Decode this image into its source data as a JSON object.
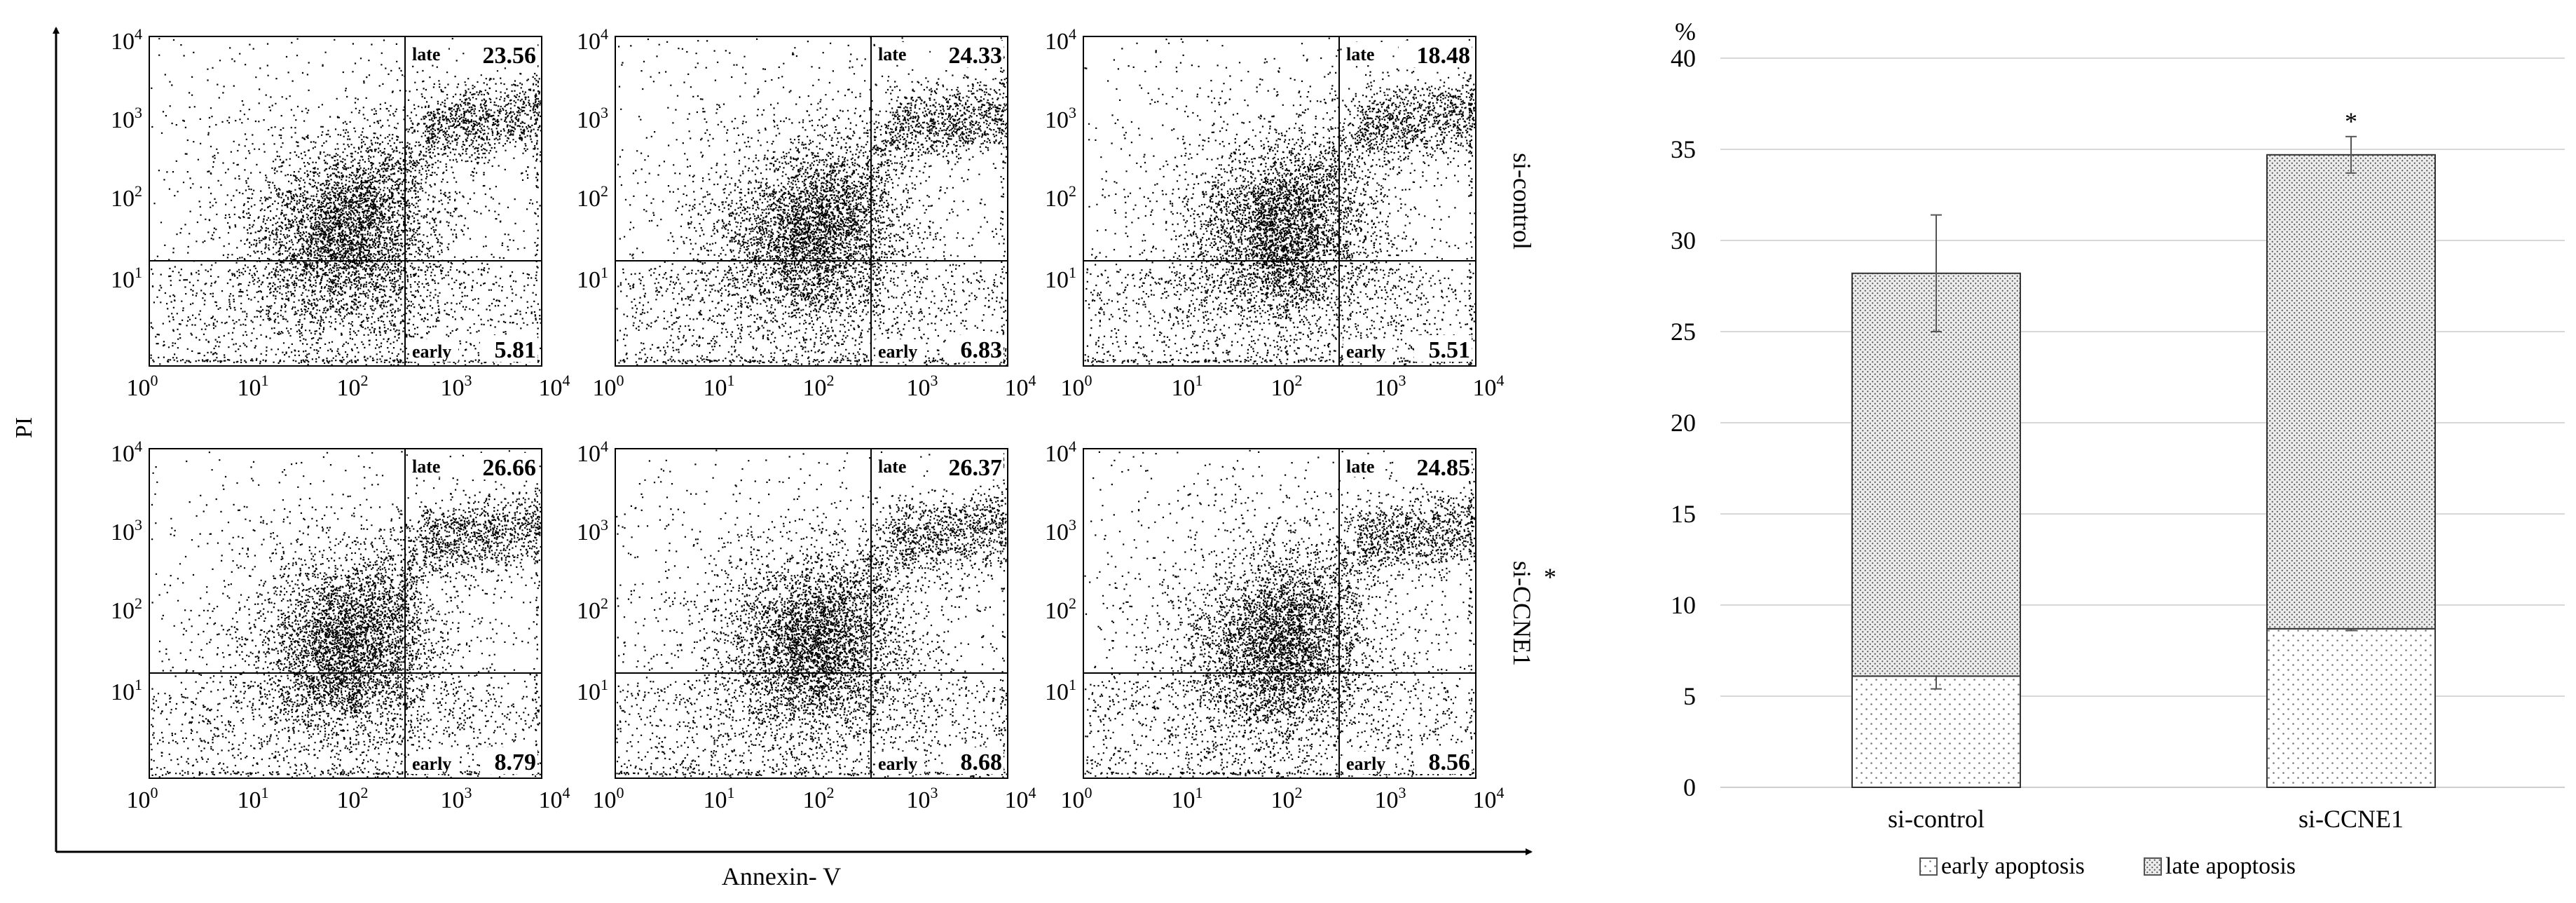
{
  "flow": {
    "y_axis_label": "PI",
    "x_axis_label": "Annexin- V",
    "tick_base": "10",
    "tick_exponents": [
      "0",
      "1",
      "2",
      "3",
      "4"
    ],
    "quadrant_labels": {
      "late": "late",
      "early": "early"
    },
    "rows": [
      {
        "label": "si-control",
        "star": "",
        "panels": [
          {
            "late": "23.56",
            "early": "5.81"
          },
          {
            "late": "24.33",
            "early": "6.83"
          },
          {
            "late": "18.48",
            "early": "5.51"
          }
        ]
      },
      {
        "label": "si-CCNE1",
        "star": "*",
        "panels": [
          {
            "late": "26.66",
            "early": "8.79"
          },
          {
            "late": "26.37",
            "early": "8.68"
          },
          {
            "late": "24.85",
            "early": "8.56"
          }
        ]
      }
    ]
  },
  "chart_data": {
    "type": "bar",
    "stacked": true,
    "y_unit_label": "%",
    "ylim": [
      0,
      40
    ],
    "yticks": [
      "0",
      "5",
      "10",
      "15",
      "20",
      "25",
      "30",
      "35",
      "40"
    ],
    "grid": true,
    "legend_position": "bottom",
    "categories": [
      "si-control",
      "si-CCNE1"
    ],
    "series": [
      {
        "name": "early apoptosis",
        "values": [
          6.1,
          8.7
        ],
        "errors": [
          0.7,
          0.1
        ]
      },
      {
        "name": "late apoptosis",
        "values": [
          22.1,
          26.0
        ],
        "errors": [
          3.2,
          1.0
        ]
      }
    ],
    "significance": [
      "",
      "*"
    ]
  }
}
